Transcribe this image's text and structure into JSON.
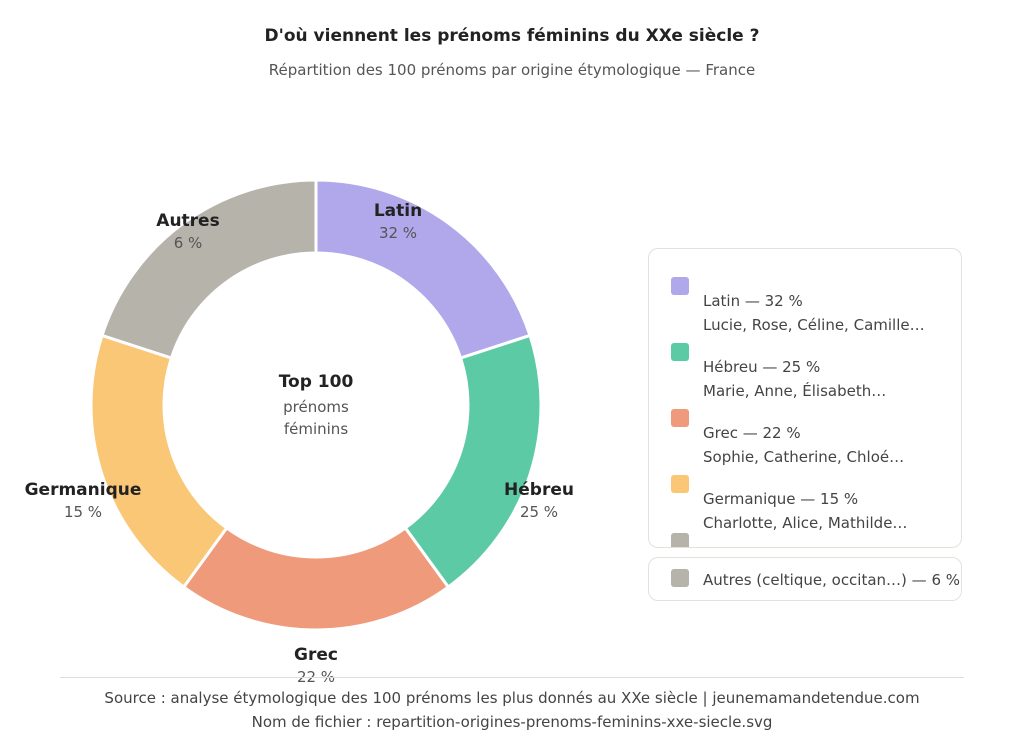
{
  "title": "D'où viennent les prénoms féminins du XXe siècle ?",
  "subtitle": "Répartition des 100 prénoms par origine étymologique — France",
  "center": {
    "title": "Top 100",
    "line1": "prénoms",
    "line2": "féminins"
  },
  "chart_data": {
    "type": "pie",
    "title": "D'où viennent les prénoms féminins du XXe siècle ?",
    "categories": [
      "Latin",
      "Hébreu",
      "Grec",
      "Germanique",
      "Autres"
    ],
    "values": [
      32,
      25,
      22,
      15,
      6
    ],
    "value_labels": [
      "32 %",
      "25 %",
      "22 %",
      "15 %",
      "6 %"
    ],
    "colors": [
      "#b0a8ea",
      "#5ccaa5",
      "#f09a7c",
      "#f9c775",
      "#b6b3aa"
    ],
    "legend": [
      {
        "title": "Latin — 32 %",
        "examples": "Lucie, Rose, Céline, Camille…"
      },
      {
        "title": "Hébreu — 25 %",
        "examples": "Marie, Anne, Élisabeth…"
      },
      {
        "title": "Grec — 22 %",
        "examples": "Sophie, Catherine, Chloé…"
      },
      {
        "title": "Germanique — 15 %",
        "examples": "Charlotte, Alice, Mathilde…"
      },
      {
        "title": "Autres (celtique, occitan…) — 6 %"
      }
    ],
    "legend_position": "right"
  },
  "footer": {
    "source": "Source : analyse étymologique des 100 prénoms les plus donnés au XXe siècle | jeunemamandetendue.com",
    "filename": "Nom de fichier : repartition-origines-prenoms-feminins-xxe-siecle.svg"
  }
}
